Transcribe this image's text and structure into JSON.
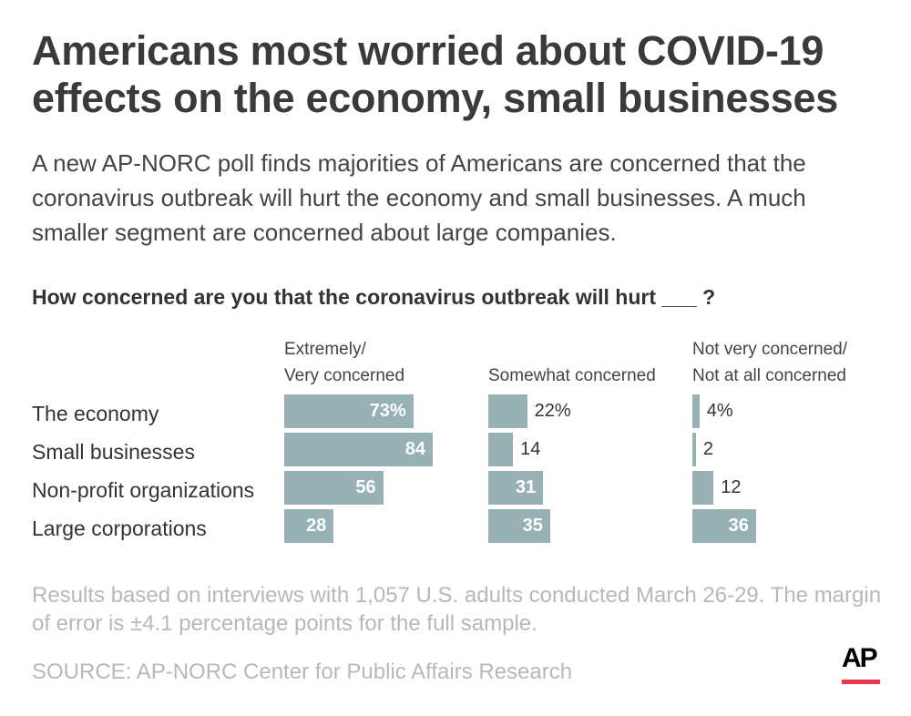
{
  "title": "Americans most worried about COVID-19 effects on the economy, small businesses",
  "subtitle": "A new AP-NORC poll finds majorities of Americans are concerned that the coronavirus outbreak will hurt the economy and small businesses. A much smaller segment are concerned about large companies.",
  "note": "Results based on interviews with 1,057 U.S. adults conducted March 26-29. The margin of error is ±4.1 percentage points for the full sample.",
  "source": "SOURCE: AP-NORC Center for Public Affairs Research",
  "logo_text": "AP",
  "colors": {
    "bar": "#97b1b5",
    "logo_accent": "#e8384f"
  },
  "chart_data": {
    "type": "bar",
    "orientation": "horizontal",
    "title": "How concerned are you that the coronavirus outbreak will hurt ___ ?",
    "categories": [
      "The economy",
      "Small businesses",
      "Non-profit organizations",
      "Large corporations"
    ],
    "series": [
      {
        "name": "Extremely/\nVery concerned",
        "values": [
          73,
          84,
          56,
          28
        ]
      },
      {
        "name": "Somewhat concerned",
        "values": [
          22,
          14,
          31,
          35
        ]
      },
      {
        "name": "Not very concerned/\nNot at all concerned",
        "values": [
          4,
          2,
          12,
          36
        ]
      }
    ],
    "value_labels": [
      [
        "73%",
        "84",
        "56",
        "28"
      ],
      [
        "22%",
        "14",
        "31",
        "35"
      ],
      [
        "4%",
        "2",
        "12",
        "36"
      ]
    ],
    "unit": "%"
  }
}
